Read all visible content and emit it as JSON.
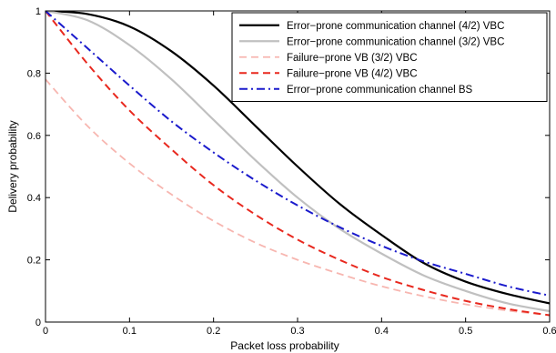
{
  "chart_data": {
    "type": "line",
    "title": "",
    "xlabel": "Packet loss probability",
    "ylabel": "Delivery probability",
    "xlim": [
      0,
      0.6
    ],
    "ylim": [
      0,
      1
    ],
    "xticks": [
      0,
      0.1,
      0.2,
      0.3,
      0.4,
      0.5,
      0.6
    ],
    "yticks": [
      0,
      0.2,
      0.4,
      0.6,
      0.8,
      1
    ],
    "xtick_labels": [
      "0",
      "0.1",
      "0.2",
      "0.3",
      "0.4",
      "0.5",
      "0.6"
    ],
    "ytick_labels": [
      "0",
      "0.2",
      "0.4",
      "0.6",
      "0.8",
      "1"
    ],
    "grid": false,
    "legend_position": "top-right",
    "series": [
      {
        "name": "Error−prone communication channel (4/2) VBC",
        "color": "#000000",
        "dash": "solid",
        "x": [
          0,
          0.05,
          0.1,
          0.15,
          0.2,
          0.25,
          0.3,
          0.35,
          0.4,
          0.45,
          0.5,
          0.55,
          0.6
        ],
        "y": [
          1.0,
          0.99,
          0.95,
          0.87,
          0.76,
          0.63,
          0.5,
          0.38,
          0.28,
          0.19,
          0.13,
          0.09,
          0.06
        ]
      },
      {
        "name": "Error−prone communication channel (3/2) VBC",
        "color": "#c0c0c0",
        "dash": "solid",
        "x": [
          0,
          0.05,
          0.1,
          0.15,
          0.2,
          0.25,
          0.3,
          0.35,
          0.4,
          0.45,
          0.5,
          0.55,
          0.6
        ],
        "y": [
          1.0,
          0.97,
          0.89,
          0.78,
          0.65,
          0.52,
          0.4,
          0.3,
          0.22,
          0.15,
          0.1,
          0.06,
          0.035
        ]
      },
      {
        "name": "Failure−prone VB (3/2) VBC",
        "color": "#f7b6b0",
        "dash": "dashed",
        "x": [
          0,
          0.05,
          0.1,
          0.15,
          0.2,
          0.25,
          0.3,
          0.35,
          0.4,
          0.45,
          0.5,
          0.55,
          0.6
        ],
        "y": [
          0.78,
          0.63,
          0.51,
          0.41,
          0.325,
          0.255,
          0.2,
          0.155,
          0.115,
          0.083,
          0.057,
          0.037,
          0.022
        ]
      },
      {
        "name": "Failure−prone VB (4/2) VBC",
        "color": "#e8281e",
        "dash": "dashed",
        "x": [
          0,
          0.05,
          0.1,
          0.15,
          0.2,
          0.25,
          0.3,
          0.35,
          0.4,
          0.45,
          0.5,
          0.55,
          0.6
        ],
        "y": [
          1.0,
          0.83,
          0.68,
          0.555,
          0.44,
          0.345,
          0.265,
          0.2,
          0.145,
          0.103,
          0.068,
          0.042,
          0.022
        ]
      },
      {
        "name": "Error−prone communication channel BS",
        "color": "#1a1acc",
        "dash": "dashdot",
        "x": [
          0,
          0.05,
          0.1,
          0.15,
          0.2,
          0.25,
          0.3,
          0.35,
          0.4,
          0.45,
          0.5,
          0.55,
          0.6
        ],
        "y": [
          1.0,
          0.88,
          0.76,
          0.645,
          0.545,
          0.455,
          0.375,
          0.305,
          0.245,
          0.195,
          0.155,
          0.115,
          0.085
        ]
      }
    ]
  }
}
